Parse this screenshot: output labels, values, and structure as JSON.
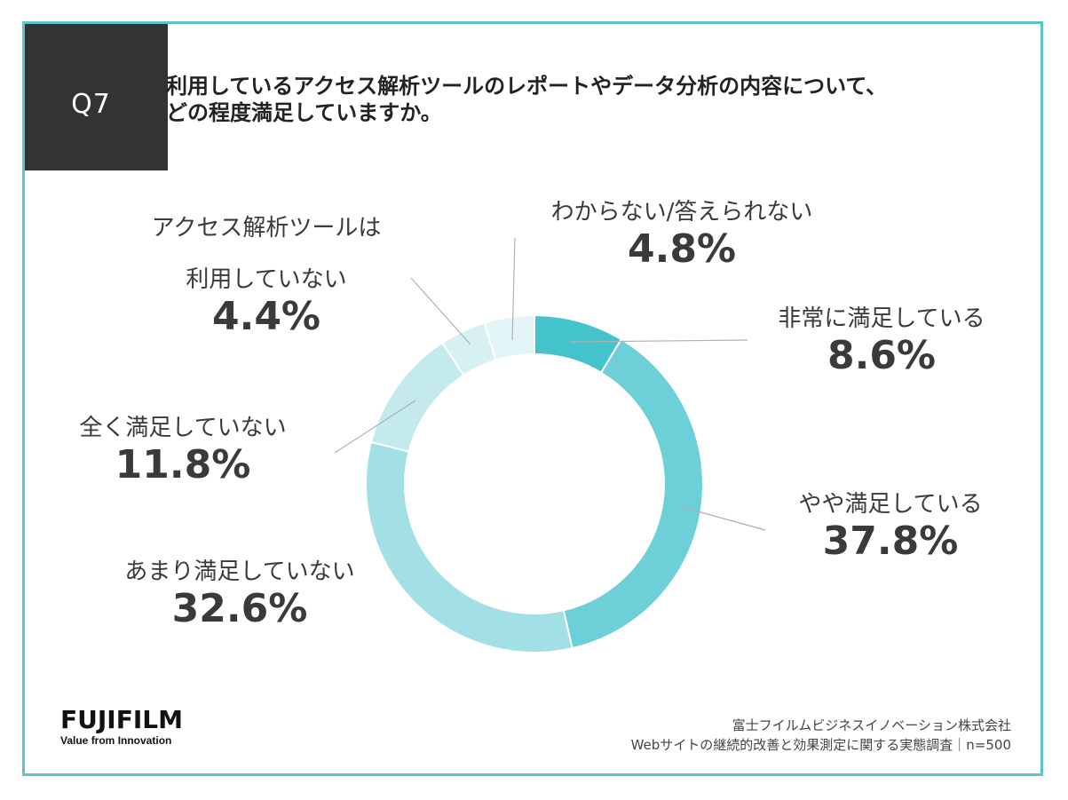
{
  "header": {
    "q_number": "Q7",
    "question_line1": "利用しているアクセス解析ツールのレポートやデータ分析の内容について、",
    "question_line2": "どの程度満足していますか。"
  },
  "chart_data": {
    "type": "pie",
    "donut": true,
    "slices": [
      {
        "label": "非常に満足している",
        "value": 8.6,
        "value_label": "8.6%",
        "color": "#44c3cd"
      },
      {
        "label": "やや満足している",
        "value": 37.8,
        "value_label": "37.8%",
        "color": "#6dcfd7"
      },
      {
        "label": "あまり満足していない",
        "value": 32.6,
        "value_label": "32.6%",
        "color": "#a3e0e5"
      },
      {
        "label": "全く満足していない",
        "value": 11.8,
        "value_label": "11.8%",
        "color": "#c5eaee"
      },
      {
        "label_line1": "アクセス解析ツールは",
        "label_line2": "利用していない",
        "value": 4.4,
        "value_label": "4.4%",
        "color": "#d7f0f3"
      },
      {
        "label": "わからない/答えられない",
        "value": 4.8,
        "value_label": "4.8%",
        "color": "#e3f4f6"
      }
    ]
  },
  "footer": {
    "logo_word": "FUJIFILM",
    "logo_tagline": "Value from Innovation",
    "source_line1": "富士フイルムビジネスイノベーション株式会社",
    "source_line2": "Webサイトの継続的改善と効果測定に関する実態調査｜n=500"
  }
}
